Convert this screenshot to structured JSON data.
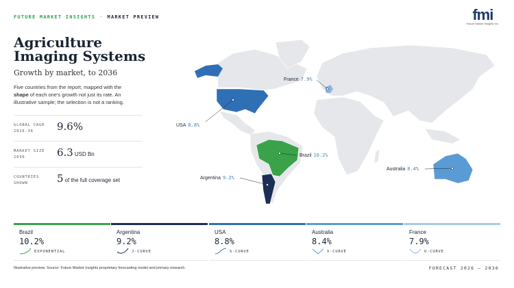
{
  "header": {
    "brand": "FUTURE MARKET INSIGHTS",
    "separator": "·",
    "section": "MARKET PREVIEW",
    "logo": "fmi",
    "logo_caption": "Future Market Insights Inc."
  },
  "title": "Agriculture Imaging Systems",
  "subtitle": "Growth by market, to 2036",
  "description": [
    "Five countries from the report, mapped with the ",
    "shape",
    " of each one's growth not just its rate. An illustrative sample; the selection is not a ranking."
  ],
  "stats": [
    {
      "label": [
        "GLOBAL CAGR",
        "2026-36"
      ],
      "value": "9.6%"
    },
    {
      "label": [
        "MARKET SIZE",
        "2036"
      ],
      "value": "6.3",
      "unit": "USD Bn"
    },
    {
      "label": [
        "COUNTRIES",
        "SHOWN"
      ],
      "value": "5",
      "unit": "of the full coverage set"
    }
  ],
  "map_labels": [
    {
      "country": "France",
      "value": "7.9%"
    },
    {
      "country": "USA",
      "value": "8.8%"
    },
    {
      "country": "Brazil",
      "value": "10.2%"
    },
    {
      "country": "Argentina",
      "value": "9.2%"
    },
    {
      "country": "Australia",
      "value": "8.4%"
    }
  ],
  "cards": [
    {
      "country": "Brazil",
      "value": "10.2%",
      "curve": "EXPONENTIAL"
    },
    {
      "country": "Argentina",
      "value": "9.2%",
      "curve": "J-CURVE"
    },
    {
      "country": "USA",
      "value": "8.8%",
      "curve": "S-CURVE"
    },
    {
      "country": "Australia",
      "value": "8.4%",
      "curve": "V-CURVE"
    },
    {
      "country": "France",
      "value": "7.9%",
      "curve": "U-CURVE"
    }
  ],
  "footer": {
    "source": "Illustrative preview. Source: Future Market Insights proprietary forecasting model and primary research.",
    "range": "FORECAST 2026 – 2036"
  }
}
